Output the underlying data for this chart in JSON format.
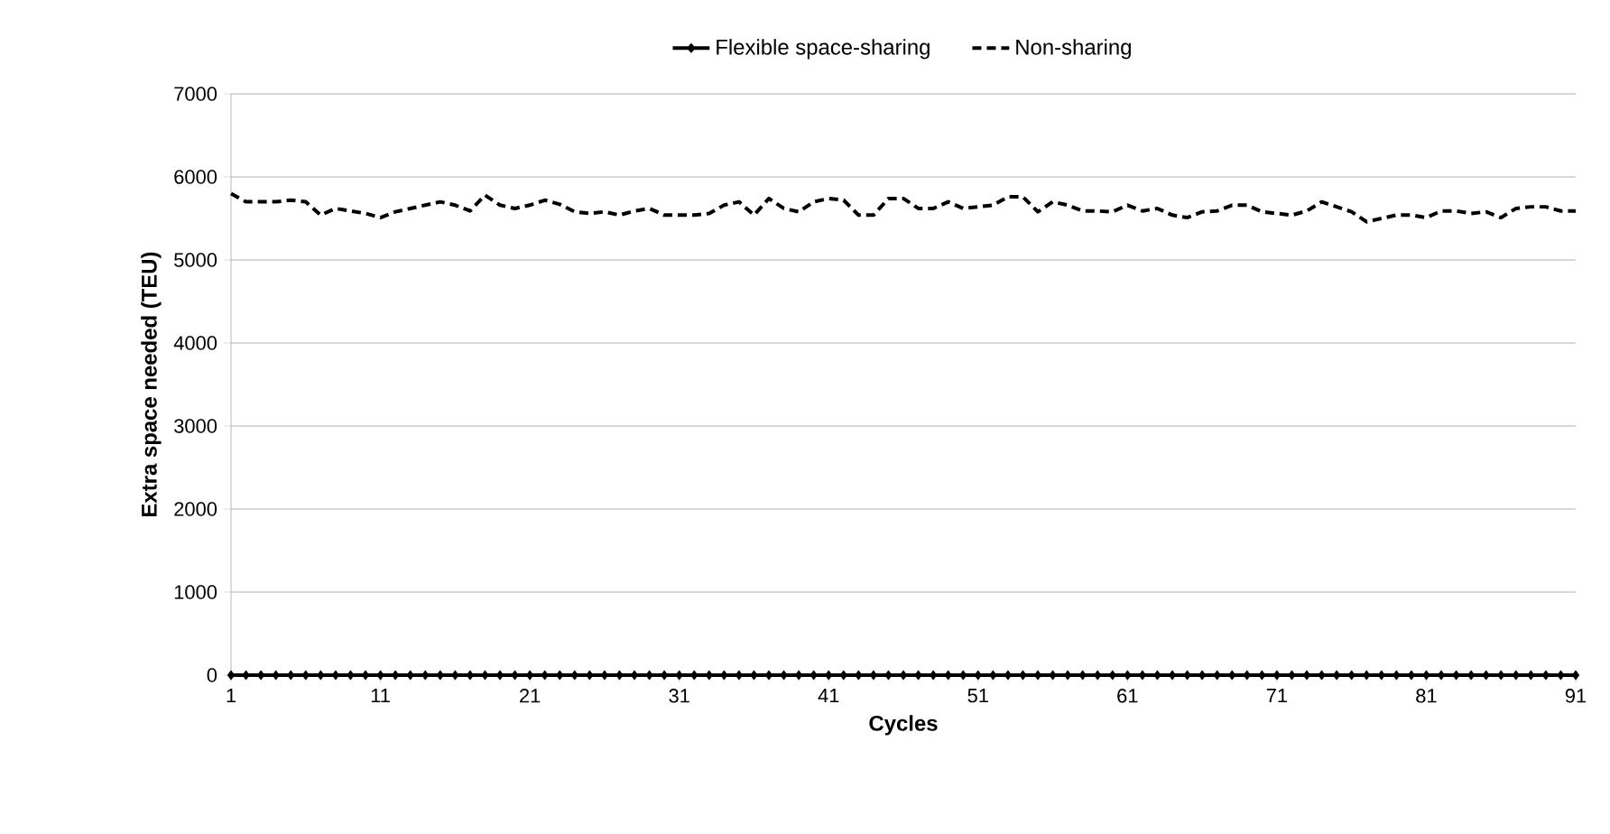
{
  "chart_data": {
    "type": "line",
    "xlabel": "Cycles",
    "ylabel": "Extra space needed (TEU)",
    "x": [
      1,
      2,
      3,
      4,
      5,
      6,
      7,
      8,
      9,
      10,
      11,
      12,
      13,
      14,
      15,
      16,
      17,
      18,
      19,
      20,
      21,
      22,
      23,
      24,
      25,
      26,
      27,
      28,
      29,
      30,
      31,
      32,
      33,
      34,
      35,
      36,
      37,
      38,
      39,
      40,
      41,
      42,
      43,
      44,
      45,
      46,
      47,
      48,
      49,
      50,
      51,
      52,
      53,
      54,
      55,
      56,
      57,
      58,
      59,
      60,
      61,
      62,
      63,
      64,
      65,
      66,
      67,
      68,
      69,
      70,
      71,
      72,
      73,
      74,
      75,
      76,
      77,
      78,
      79,
      80,
      81,
      82,
      83,
      84,
      85,
      86,
      87,
      88,
      89,
      90,
      91
    ],
    "xlim": [
      1,
      91
    ],
    "xticks": [
      1,
      11,
      21,
      31,
      41,
      51,
      61,
      71,
      81,
      91
    ],
    "ylim": [
      0,
      7000
    ],
    "yticks": [
      0,
      1000,
      2000,
      3000,
      4000,
      5000,
      6000,
      7000
    ],
    "grid": "y",
    "legend": "top",
    "series": [
      {
        "name": "Flexible space-sharing",
        "color": "#000000",
        "marker": "diamond",
        "line_style": "solid",
        "values": [
          0,
          0,
          0,
          0,
          0,
          0,
          0,
          0,
          0,
          0,
          0,
          0,
          0,
          0,
          0,
          0,
          0,
          0,
          0,
          0,
          0,
          0,
          0,
          0,
          0,
          0,
          0,
          0,
          0,
          0,
          0,
          0,
          0,
          0,
          0,
          0,
          0,
          0,
          0,
          0,
          0,
          0,
          0,
          0,
          0,
          0,
          0,
          0,
          0,
          0,
          0,
          0,
          0,
          0,
          0,
          0,
          0,
          0,
          0,
          0,
          0,
          0,
          0,
          0,
          0,
          0,
          0,
          0,
          0,
          0,
          0,
          0,
          0,
          0,
          0,
          0,
          0,
          0,
          0,
          0,
          0,
          0,
          0,
          0,
          0,
          0,
          0,
          0,
          0,
          0,
          0
        ]
      },
      {
        "name": "Non-sharing",
        "color": "#000000",
        "marker": "none",
        "line_style": "dashed",
        "values": [
          5800,
          5700,
          5700,
          5700,
          5720,
          5700,
          5540,
          5620,
          5590,
          5560,
          5510,
          5580,
          5620,
          5660,
          5700,
          5660,
          5590,
          5780,
          5660,
          5620,
          5660,
          5720,
          5670,
          5580,
          5560,
          5580,
          5540,
          5590,
          5620,
          5540,
          5540,
          5540,
          5560,
          5660,
          5700,
          5540,
          5740,
          5620,
          5580,
          5700,
          5740,
          5720,
          5540,
          5540,
          5740,
          5740,
          5620,
          5620,
          5700,
          5620,
          5640,
          5660,
          5760,
          5760,
          5580,
          5700,
          5660,
          5590,
          5590,
          5580,
          5660,
          5590,
          5620,
          5540,
          5510,
          5580,
          5590,
          5660,
          5660,
          5580,
          5560,
          5540,
          5590,
          5700,
          5640,
          5580,
          5460,
          5500,
          5540,
          5540,
          5510,
          5590,
          5590,
          5560,
          5580,
          5510,
          5620,
          5640,
          5640,
          5590,
          5590
        ]
      }
    ]
  }
}
